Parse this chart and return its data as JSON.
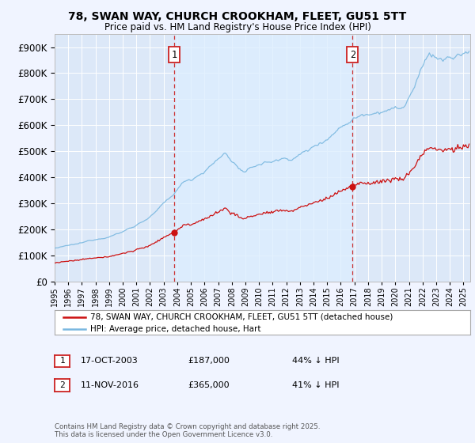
{
  "title_line1": "78, SWAN WAY, CHURCH CROOKHAM, FLEET, GU51 5TT",
  "title_line2": "Price paid vs. HM Land Registry's House Price Index (HPI)",
  "legend_line1": "78, SWAN WAY, CHURCH CROOKHAM, FLEET, GU51 5TT (detached house)",
  "legend_line2": "HPI: Average price, detached house, Hart",
  "sale1_date": "17-OCT-2003",
  "sale1_price": 187000,
  "sale1_note": "44% ↓ HPI",
  "sale2_date": "11-NOV-2016",
  "sale2_price": 365000,
  "sale2_note": "41% ↓ HPI",
  "sale1_year": 2003.79,
  "sale2_year": 2016.86,
  "footer": "Contains HM Land Registry data © Crown copyright and database right 2025.\nThis data is licensed under the Open Government Licence v3.0.",
  "fig_bg_color": "#f0f4ff",
  "plot_bg_color": "#dce8f8",
  "shade_color": "#ddeeff",
  "grid_color": "#ffffff",
  "hpi_color": "#7ab8e0",
  "sale_color": "#cc1111",
  "dashed_color": "#cc3333",
  "box_edge_color": "#cc2222",
  "ylim_max": 950000,
  "ylim_min": 0,
  "xmin": 1995.0,
  "xmax": 2025.5
}
